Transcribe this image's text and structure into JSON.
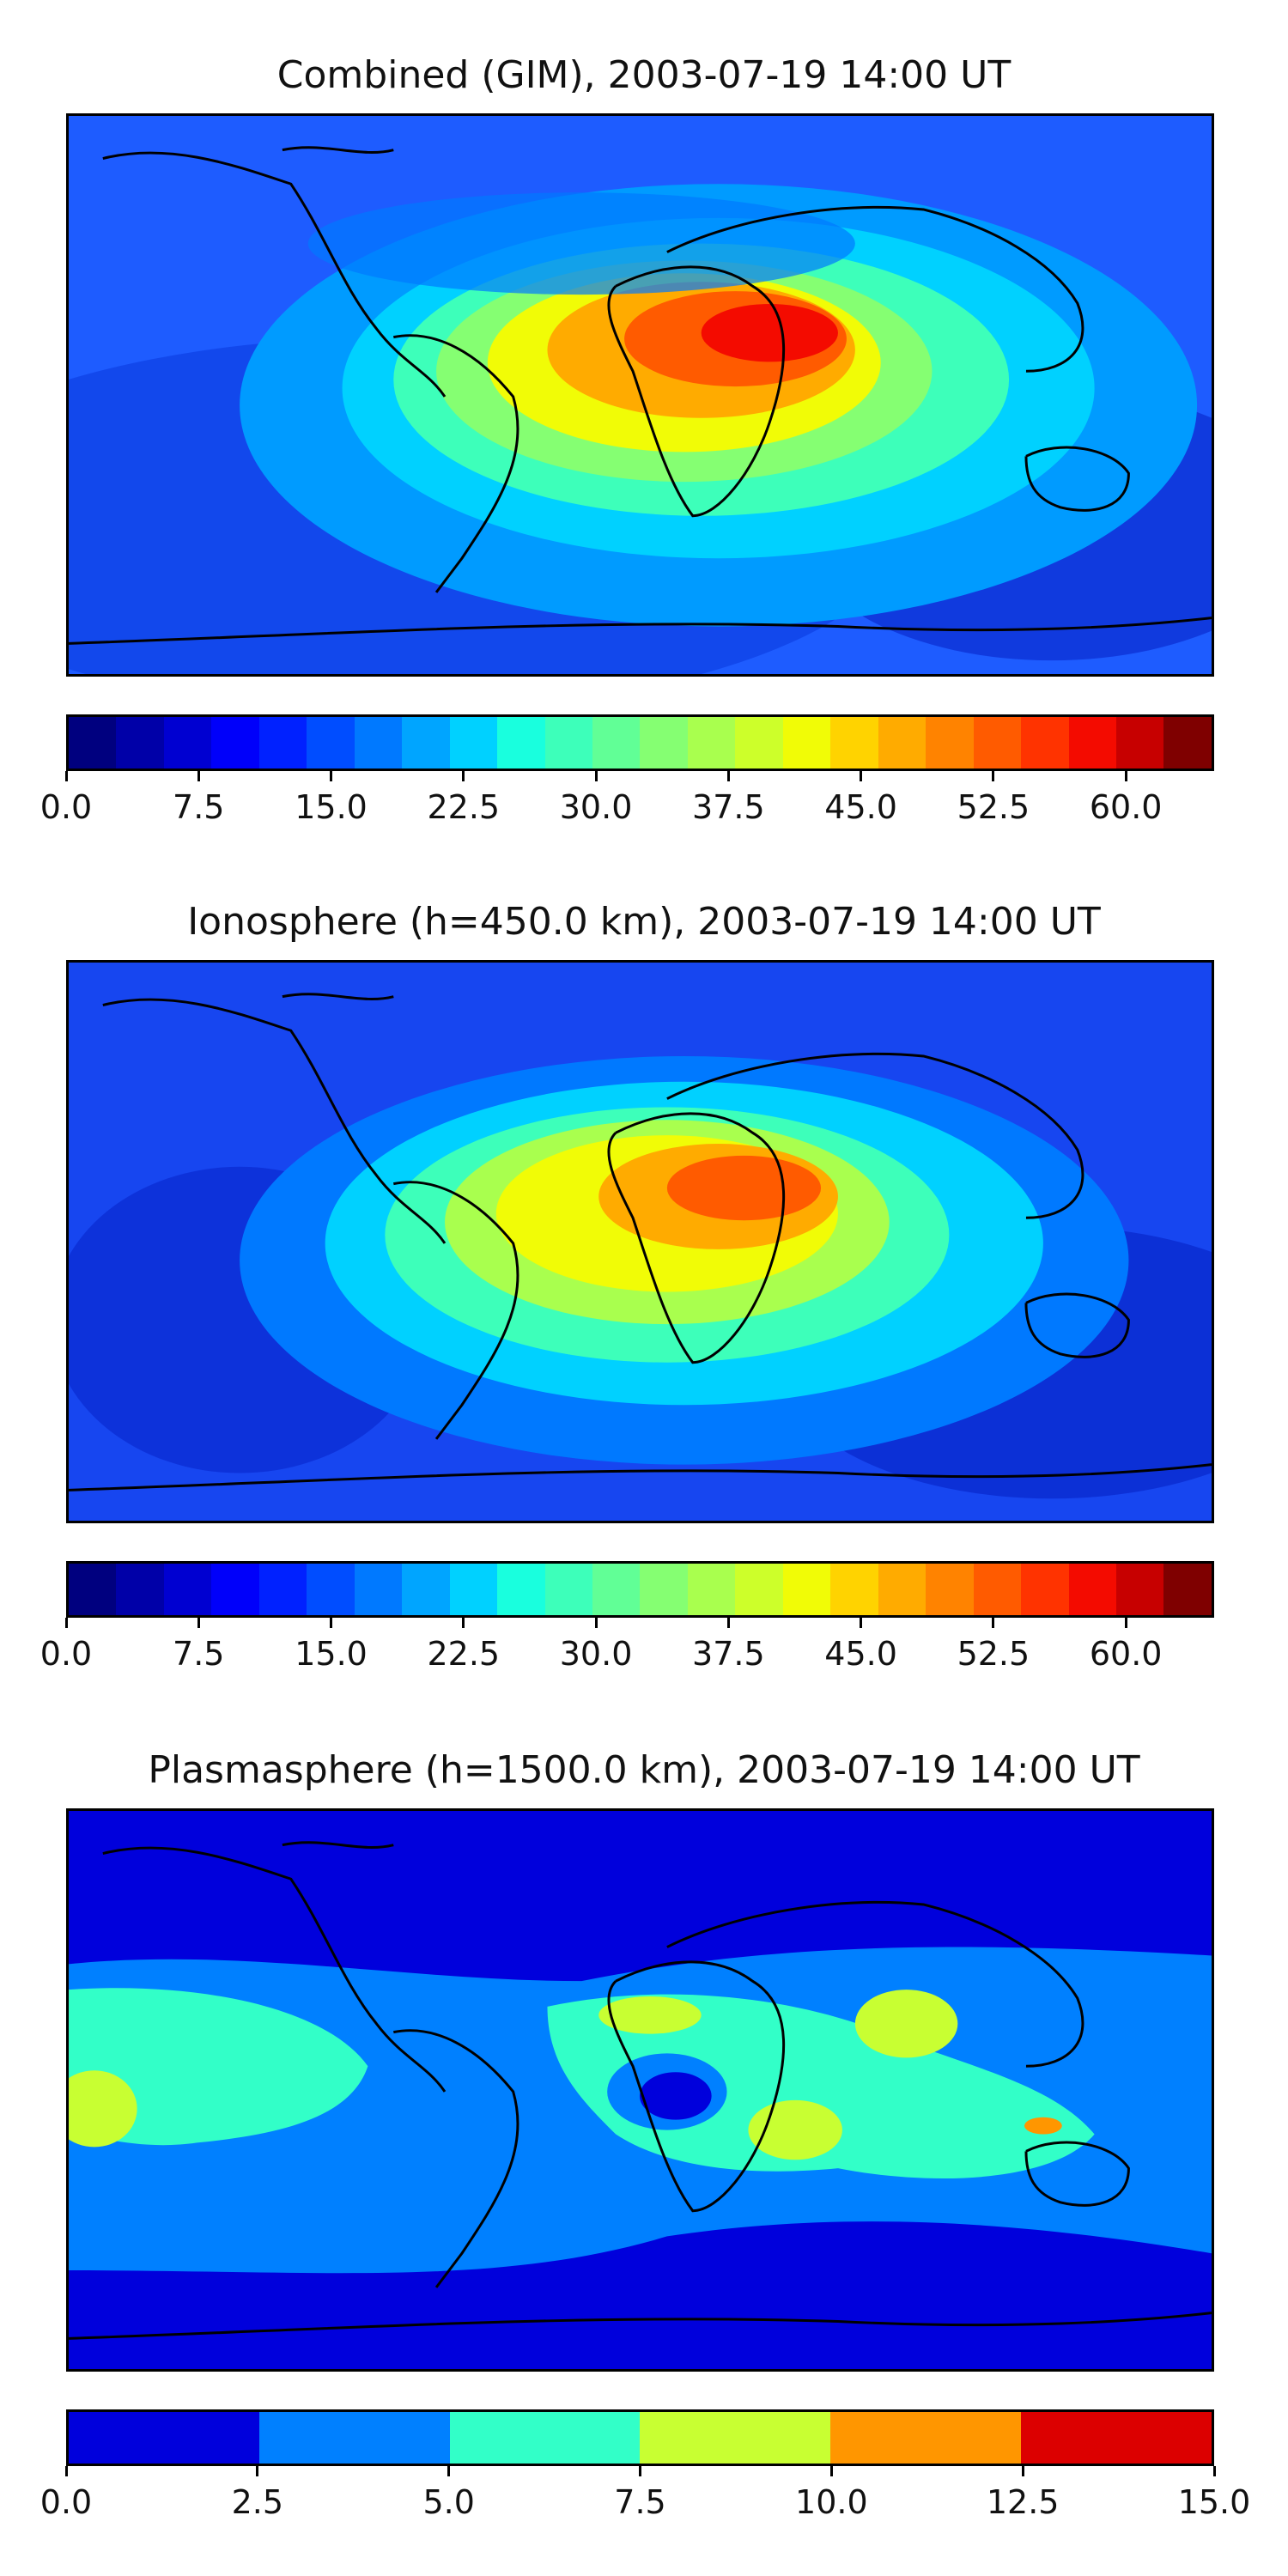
{
  "panels": [
    {
      "id": "combined",
      "title": "Combined (GIM), 2003-07-19 14:00 UT",
      "colorbar": {
        "min": 0.0,
        "max": 65.0,
        "colors": [
          "#00007f",
          "#0000a8",
          "#0000d1",
          "#0000fa",
          "#0021ff",
          "#004dff",
          "#0079ff",
          "#00a5ff",
          "#00d1ff",
          "#19ffde",
          "#3dffba",
          "#61ff96",
          "#85ff72",
          "#a9ff4e",
          "#cdff2a",
          "#f1fc06",
          "#ffd300",
          "#ffab00",
          "#ff8300",
          "#ff5b00",
          "#ff3300",
          "#f40b00",
          "#c70000",
          "#7f0000"
        ],
        "ticks": [
          "0.0",
          "7.5",
          "15.0",
          "22.5",
          "30.0",
          "37.5",
          "45.0",
          "52.5",
          "60.0"
        ],
        "tick_values": [
          0,
          7.5,
          15,
          22.5,
          30,
          37.5,
          45,
          52.5,
          60
        ]
      },
      "hotspot_center": [
        52,
        24
      ],
      "background": "#1e5cff"
    },
    {
      "id": "ionosphere",
      "title": "Ionosphere  (h=450.0 km), 2003-07-19 14:00 UT",
      "colorbar": {
        "min": 0.0,
        "max": 65.0,
        "colors": [
          "#00007f",
          "#0000a8",
          "#0000d1",
          "#0000fa",
          "#0021ff",
          "#004dff",
          "#0079ff",
          "#00a5ff",
          "#00d1ff",
          "#19ffde",
          "#3dffba",
          "#61ff96",
          "#85ff72",
          "#a9ff4e",
          "#cdff2a",
          "#f1fc06",
          "#ffd300",
          "#ffab00",
          "#ff8300",
          "#ff5b00",
          "#ff3300",
          "#f40b00",
          "#c70000",
          "#7f0000"
        ],
        "ticks": [
          "0.0",
          "7.5",
          "15.0",
          "22.5",
          "30.0",
          "37.5",
          "45.0",
          "52.5",
          "60.0"
        ],
        "tick_values": [
          0,
          7.5,
          15,
          22.5,
          30,
          37.5,
          45,
          52.5,
          60
        ]
      },
      "hotspot_center": [
        40,
        22
      ],
      "background": "#1746f0"
    },
    {
      "id": "plasmasphere",
      "title": "Plasmasphere (h=1500.0 km), 2003-07-19 14:00 UT",
      "colorbar": {
        "min": 0.0,
        "max": 15.0,
        "colors": [
          "#0000dc",
          "#0080ff",
          "#32ffc8",
          "#c8ff32",
          "#ff9600",
          "#dc0000"
        ],
        "ticks": [
          "0.0",
          "2.5",
          "5.0",
          "7.5",
          "10.0",
          "12.5",
          "15.0"
        ],
        "tick_values": [
          0,
          2.5,
          5,
          7.5,
          10,
          12.5,
          15
        ]
      },
      "background": "#0000dc"
    }
  ]
}
